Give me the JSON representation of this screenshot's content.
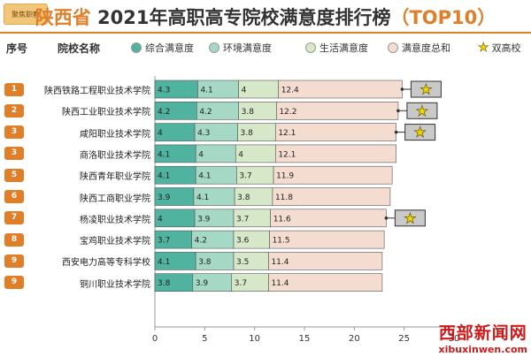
{
  "header": {
    "logo_text": "聚焦职教",
    "title_province": "陕西省",
    "title_main": " 2021年高职高专院校满意度排行榜",
    "title_tag": "（TOP10）"
  },
  "columns": {
    "rank_header": "序号",
    "school_header": "院校名称"
  },
  "legend": [
    {
      "label": "综合满意度",
      "color": "#4fb3a0"
    },
    {
      "label": "环境满意度",
      "color": "#a6d8c6"
    },
    {
      "label": "生活满意度",
      "color": "#d6e8c8"
    },
    {
      "label": "满意度总和",
      "color": "#f4ddd0"
    },
    {
      "label": "双高校",
      "icon": "star-icon",
      "color": "#f2d600"
    }
  ],
  "chart_data": {
    "type": "bar",
    "orientation": "horizontal",
    "stacked": true,
    "categories": [
      "陕西铁路工程职业技术学院",
      "陕西工业职业技术学院",
      "咸阳职业技术学院",
      "商洛职业技术学院",
      "陕西青年职业学院",
      "陕西工商职业学院",
      "杨凌职业技术学院",
      "宝鸡职业技术学院",
      "西安电力高等专科学校",
      "铜川职业技术学院"
    ],
    "ranks": [
      "1",
      "2",
      "3",
      "3",
      "5",
      "6",
      "7",
      "8",
      "9",
      "9"
    ],
    "series": [
      {
        "name": "综合满意度",
        "values": [
          4.3,
          4.2,
          4,
          4.1,
          4.1,
          3.9,
          4,
          3.7,
          4.1,
          3.8
        ],
        "color": "#4fb3a0"
      },
      {
        "name": "环境满意度",
        "values": [
          4.1,
          4.2,
          4.3,
          4,
          4.1,
          4.1,
          3.9,
          4.2,
          3.8,
          3.9
        ],
        "color": "#a6d8c6"
      },
      {
        "name": "生活满意度",
        "values": [
          4,
          3.8,
          3.8,
          4,
          3.7,
          3.8,
          3.7,
          3.6,
          3.5,
          3.7
        ],
        "color": "#d6e8c8"
      },
      {
        "name": "满意度总和",
        "values": [
          12.4,
          12.2,
          12.1,
          12.1,
          11.9,
          11.8,
          11.6,
          11.5,
          11.4,
          11.4
        ],
        "color": "#f4ddd0"
      }
    ],
    "shuanggao": [
      true,
      true,
      true,
      false,
      false,
      false,
      true,
      false,
      false,
      false
    ],
    "xlim": [
      0,
      30
    ],
    "xticks": [
      "0",
      "5",
      "10",
      "15",
      "20",
      "25",
      "30"
    ]
  },
  "watermark": {
    "line1": "西部新闻网",
    "line2": "xibuxinwen.com"
  }
}
